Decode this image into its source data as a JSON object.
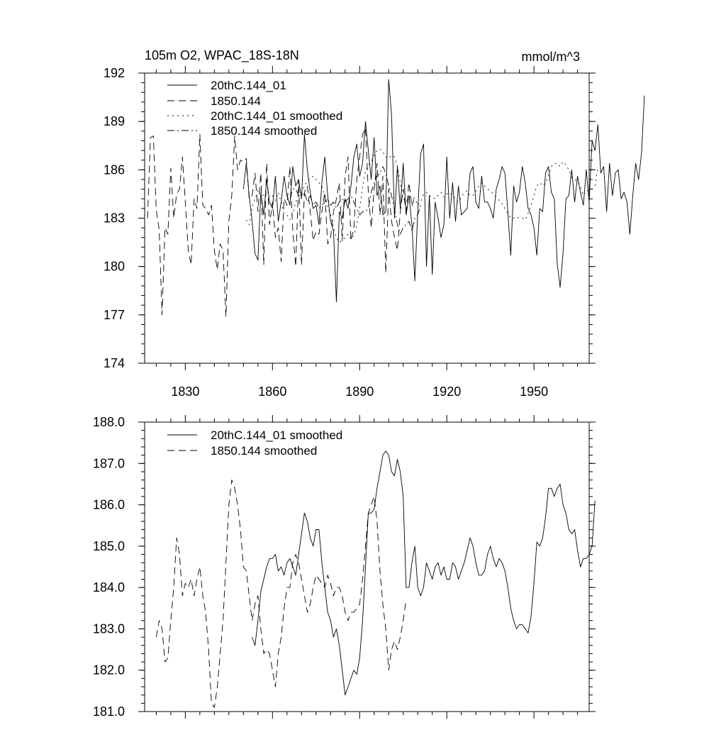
{
  "chart_data": [
    {
      "type": "line",
      "title": "105m O2, WPAC_18S-18N",
      "units_label": "mmol/m^3",
      "xlim": [
        1816,
        1969
      ],
      "ylim": [
        174,
        192
      ],
      "x_ticks": [
        1830,
        1860,
        1890,
        1920,
        1950
      ],
      "x_tick_labels": [
        "1830",
        "1860",
        "1890",
        "1920",
        "1950"
      ],
      "y_ticks": [
        174,
        177,
        180,
        183,
        186,
        189,
        192
      ],
      "y_tick_labels": [
        "174",
        "177",
        "180",
        "183",
        "186",
        "189",
        "192"
      ],
      "grid": false,
      "legend_position": "top-left",
      "series": [
        {
          "name": "20thC.144_01",
          "style": "solid",
          "x_start": 1850,
          "values": [
            184.8,
            186.4,
            184.4,
            182.8,
            180.8,
            180.4,
            184.6,
            183.2,
            185.4,
            184.0,
            183.6,
            185.6,
            182.8,
            184.0,
            185.6,
            184.4,
            183.8,
            186.2,
            185.0,
            185.4,
            184.2,
            188.2,
            186.0,
            184.6,
            183.6,
            183.8,
            182.6,
            185.2,
            186.8,
            184.4,
            182.8,
            182.2,
            177.8,
            183.4,
            183.0,
            184.2,
            183.6,
            185.0,
            186.8,
            187.6,
            185.6,
            186.4,
            189.0,
            187.2,
            185.4,
            188.0,
            184.4,
            185.0,
            183.2,
            183.4,
            191.6,
            189.4,
            183.0,
            186.2,
            183.6,
            186.4,
            183.2,
            184.4,
            182.6,
            179.1,
            183.4,
            187.0,
            187.6,
            180.0,
            184.4,
            179.5,
            184.0,
            183.0,
            181.8,
            182.6,
            186.8,
            183.0,
            185.2,
            182.8,
            185.0,
            183.2,
            183.4,
            183.6,
            185.8,
            186.2,
            184.0,
            183.6,
            185.6,
            184.0,
            184.0,
            183.6,
            183.0,
            184.8,
            185.4,
            186.2,
            185.8,
            183.4,
            180.7,
            185.0,
            184.0,
            184.6,
            186.2,
            185.2,
            183.6,
            183.2,
            182.4,
            180.7,
            183.6,
            183.4,
            185.8,
            186.2,
            184.6,
            184.2,
            180.2,
            178.7,
            180.8,
            184.2,
            184.4,
            186.0,
            184.0,
            185.6,
            184.6,
            183.8,
            186.0,
            184.0,
            187.8,
            187.2,
            188.8,
            185.8,
            186.2,
            183.4,
            186.4,
            184.4,
            185.8,
            186.0,
            184.2,
            184.6,
            184.0,
            182.0,
            184.4,
            186.4,
            185.4,
            187.0,
            190.6
          ]
        },
        {
          "name": "1850.144",
          "style": "dashed",
          "x_start": 1817,
          "values": [
            183.0,
            188.0,
            188.1,
            183.5,
            182.3,
            177.0,
            182.4,
            182.0,
            186.1,
            183.0,
            184.5,
            184.8,
            186.8,
            184.0,
            181.0,
            180.1,
            184.2,
            183.6,
            188.2,
            183.8,
            183.6,
            183.2,
            183.8,
            181.0,
            179.8,
            181.4,
            181.0,
            176.9,
            182.8,
            184.4,
            188.1,
            186.0,
            186.6,
            186.5,
            186.7,
            184.2,
            184.4,
            185.8,
            183.4,
            185.8,
            180.1,
            186.4,
            182.6,
            184.0,
            181.8,
            182.4,
            180.3,
            184.2,
            183.8,
            186.2,
            182.2,
            180.0,
            185.4,
            180.1,
            184.6,
            185.0,
            183.4,
            181.6,
            182.2,
            182.0,
            183.4,
            184.6,
            181.4,
            181.8,
            183.4,
            184.2,
            185.2,
            181.6,
            185.6,
            186.8,
            181.6,
            182.4,
            185.4,
            186.8,
            188.2,
            188.6,
            184.6,
            182.4,
            184.8,
            186.4,
            183.2,
            185.6,
            179.6,
            184.8,
            182.8,
            181.8,
            181.0,
            183.4,
            184.8,
            183.4,
            185.2,
            183.7,
            184.4
          ]
        },
        {
          "name": "20thC.144_01 smoothed",
          "style": "dotted",
          "x_start": 1851,
          "values": [
            182.9,
            182.6,
            183.7,
            184.2,
            184.7,
            184.8,
            184.3,
            184.5,
            184.3,
            184.4,
            184.1,
            184.6,
            184.0,
            183.3,
            183.2,
            182.9,
            183.3,
            184.0,
            184.4,
            184.6,
            185.0,
            185.3,
            185.5,
            185.6,
            185.4,
            185.2,
            185.0,
            184.4,
            183.7,
            183.2,
            182.4,
            181.8,
            181.5,
            181.6,
            181.8,
            182.0,
            181.7,
            181.9,
            182.6,
            183.6,
            184.9,
            185.9,
            186.3,
            186.5,
            186.9,
            187.2,
            187.3,
            187.1,
            186.8,
            186.7,
            186.9,
            186.8,
            186.2,
            185.2,
            184.2,
            184.0,
            184.3,
            184.4,
            184.2,
            183.8,
            184.0,
            184.5,
            184.6,
            184.4,
            184.3,
            184.2,
            184.4,
            184.6,
            184.3,
            184.5,
            184.6,
            184.4,
            184.2,
            184.0,
            184.3,
            184.6,
            184.7,
            184.4,
            184.4,
            184.7,
            185.0,
            185.2,
            185.0,
            184.8,
            184.7,
            184.5,
            184.3,
            184.1,
            183.9,
            183.6,
            183.3,
            183.0,
            183.0,
            183.1,
            183.0,
            183.0,
            182.9,
            183.3,
            183.8,
            184.4,
            185.0,
            185.2,
            185.0,
            185.2,
            185.6,
            186.2,
            186.4,
            186.4,
            186.2,
            186.5,
            186.3,
            186.0,
            185.5,
            185.4,
            185.3,
            184.9,
            184.4,
            184.7,
            184.7,
            184.8,
            185.0,
            186.1
          ]
        },
        {
          "name": "1850.144 smoothed",
          "style": "dashdot",
          "x_start": 1866,
          "values": [
            184.2,
            184.8,
            184.8,
            184.4,
            184.4,
            184.6,
            184.0,
            184.4,
            183.8,
            184.0,
            183.6,
            183.8,
            184.0,
            184.2,
            183.8,
            184.0,
            183.6,
            184.0,
            184.2,
            184.0,
            184.2,
            184.4,
            184.0,
            183.6,
            183.2,
            183.4,
            183.4,
            183.6,
            184.6,
            185.2,
            185.6,
            185.8,
            186.2,
            185.8,
            185.0,
            184.4,
            183.6,
            182.6,
            182.0,
            182.4,
            182.6,
            182.8,
            182.2,
            183.0,
            183.2,
            183.8
          ]
        }
      ]
    },
    {
      "type": "line",
      "title": "",
      "xlim": [
        1816,
        1969
      ],
      "ylim": [
        181.0,
        188.0
      ],
      "x_ticks": [
        1830,
        1860,
        1890,
        1920,
        1950
      ],
      "y_ticks": [
        181.0,
        182.0,
        183.0,
        184.0,
        185.0,
        186.0,
        187.0,
        188.0
      ],
      "y_tick_labels": [
        "181.0",
        "182.0",
        "183.0",
        "184.0",
        "185.0",
        "186.0",
        "187.0",
        "188.0"
      ],
      "grid": false,
      "legend_position": "top-left",
      "series": [
        {
          "name": "20thC.144_01 smoothed",
          "style": "solid",
          "x_start": 1853,
          "values": [
            182.8,
            182.6,
            183.2,
            183.9,
            184.2,
            184.5,
            184.7,
            184.7,
            184.8,
            184.4,
            184.5,
            184.3,
            184.6,
            184.7,
            184.5,
            184.3,
            184.8,
            185.3,
            185.8,
            185.6,
            185.2,
            185.0,
            185.4,
            185.4,
            184.6,
            184.0,
            183.4,
            183.2,
            182.8,
            183.0,
            182.6,
            182.0,
            181.4,
            181.6,
            181.8,
            182.0,
            181.9,
            182.3,
            183.2,
            184.5,
            185.8,
            185.8,
            185.9,
            186.4,
            186.8,
            187.2,
            187.3,
            187.2,
            186.8,
            186.7,
            187.1,
            186.8,
            186.2,
            184.0,
            184.0,
            184.6,
            185.0,
            184.0,
            183.8,
            184.0,
            184.6,
            184.4,
            184.2,
            184.5,
            184.6,
            184.3,
            184.5,
            184.2,
            184.2,
            184.6,
            184.5,
            184.2,
            184.4,
            184.6,
            184.9,
            185.2,
            185.0,
            184.6,
            184.3,
            184.3,
            184.4,
            184.8,
            185.0,
            184.7,
            184.5,
            184.7,
            184.6,
            184.4,
            184.0,
            183.5,
            183.2,
            183.0,
            183.1,
            183.1,
            183.0,
            182.9,
            183.3,
            184.1,
            185.1,
            185.0,
            185.2,
            185.7,
            186.4,
            186.4,
            186.2,
            186.4,
            186.5,
            186.0,
            185.8,
            185.4,
            185.3,
            185.4,
            184.9,
            184.5,
            184.7,
            184.7,
            184.8,
            185.0,
            186.1
          ]
        },
        {
          "name": "1850.144 smoothed",
          "style": "dashed",
          "x_start": 1820,
          "values": [
            182.8,
            183.2,
            183.0,
            182.2,
            182.3,
            183.2,
            184.0,
            185.2,
            184.8,
            183.8,
            184.1,
            184.0,
            184.2,
            183.8,
            184.2,
            184.5,
            183.8,
            183.4,
            182.5,
            181.2,
            181.1,
            181.6,
            182.4,
            183.2,
            184.6,
            186.0,
            186.6,
            186.4,
            186.0,
            185.4,
            184.5,
            184.4,
            183.8,
            183.2,
            183.6,
            183.8,
            183.0,
            182.4,
            182.5,
            182.4,
            182.0,
            181.6,
            182.4,
            182.8,
            183.5,
            184.0,
            184.0,
            184.6,
            184.8,
            184.6,
            184.2,
            183.8,
            183.4,
            183.6,
            184.0,
            184.3,
            184.2,
            184.1,
            184.0,
            184.3,
            184.1,
            183.8,
            184.0,
            184.0,
            183.8,
            183.4,
            183.2,
            183.4,
            183.4,
            183.5,
            183.6,
            184.2,
            185.0,
            185.8,
            186.0,
            186.2,
            185.6,
            184.4,
            183.6,
            183.0,
            182.0,
            182.5,
            182.7,
            182.5,
            182.8,
            183.2,
            183.7
          ]
        }
      ]
    }
  ]
}
